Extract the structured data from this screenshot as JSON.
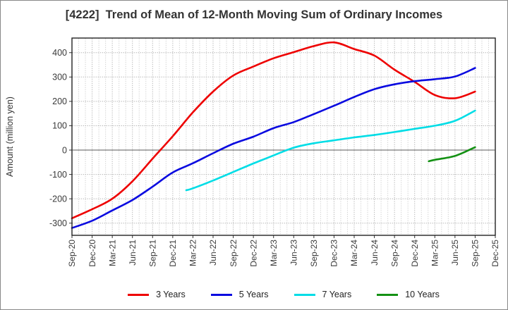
{
  "chart_data": {
    "type": "line",
    "title": "[4222]  Trend of Mean of 12-Month Moving Sum of Ordinary Incomes",
    "xlabel": "",
    "ylabel": "Amount (million yen)",
    "ylim": [
      -350,
      460
    ],
    "y_ticks": [
      400,
      300,
      200,
      100,
      0,
      -100,
      -200,
      -300
    ],
    "categories": [
      "Sep-20",
      "Dec-20",
      "Mar-21",
      "Jun-21",
      "Sep-21",
      "Dec-21",
      "Mar-22",
      "Jun-22",
      "Sep-22",
      "Dec-22",
      "Mar-23",
      "Jun-23",
      "Sep-23",
      "Dec-23",
      "Mar-24",
      "Jun-24",
      "Sep-24",
      "Dec-24",
      "Mar-25",
      "Jun-25",
      "Sep-25",
      "Dec-25"
    ],
    "months_per_category": 3,
    "grid": true,
    "legend_position": "bottom",
    "series": [
      {
        "name": "3 Years",
        "color": "#ee0000",
        "values": [
          -280,
          -243,
          -200,
          -128,
          -35,
          57,
          155,
          240,
          306,
          343,
          377,
          402,
          427,
          442,
          415,
          388,
          330,
          280,
          226,
          213,
          240,
          null
        ]
      },
      {
        "name": "5 Years",
        "color": "#0a0ae0",
        "values": [
          -320,
          -290,
          -248,
          -205,
          -150,
          -92,
          -54,
          -13,
          26,
          55,
          90,
          115,
          148,
          182,
          218,
          250,
          270,
          283,
          291,
          302,
          337,
          null
        ]
      },
      {
        "name": "7 Years",
        "color": "#00dde6",
        "values": [
          null,
          null,
          null,
          null,
          null,
          null,
          -157,
          -125,
          -90,
          -55,
          -22,
          10,
          28,
          40,
          52,
          62,
          74,
          87,
          100,
          120,
          162,
          null
        ],
        "start": {
          "x_index": 5.67,
          "value": -165
        }
      },
      {
        "name": "10 Years",
        "color": "#149114",
        "values": [
          null,
          null,
          null,
          null,
          null,
          null,
          null,
          null,
          null,
          null,
          null,
          null,
          null,
          null,
          null,
          null,
          null,
          null,
          -40,
          -24,
          12,
          null
        ],
        "start": {
          "x_index": 17.7,
          "value": -46
        }
      }
    ]
  }
}
